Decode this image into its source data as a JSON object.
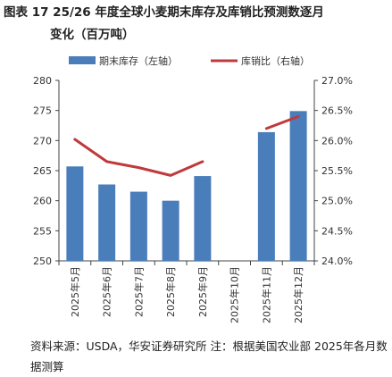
{
  "figure": {
    "title_line1": "图表 17 25/26 年度全球小麦期末库存及库销比预测数逐月",
    "title_line2": "变化（百万吨）",
    "source": "资料来源：USDA，华安证券研究所 注：根据美国农业部 2025年各月数据测算"
  },
  "chart_data": {
    "type": "bar+line",
    "categories": [
      "2025年5月",
      "2025年6月",
      "2025年7月",
      "2025年8月",
      "2025年9月",
      "2025年10月",
      "2025年11月",
      "2025年12月"
    ],
    "series": [
      {
        "name": "期末库存（左轴）",
        "type": "bar",
        "axis": "left",
        "color": "#4a7ebb",
        "values": [
          265.7,
          262.7,
          261.5,
          260.0,
          264.1,
          null,
          271.4,
          274.9
        ]
      },
      {
        "name": "库销比（右轴）",
        "type": "line",
        "axis": "right",
        "color": "#c0393b",
        "values": [
          26.02,
          25.65,
          25.55,
          25.42,
          25.65,
          null,
          26.2,
          26.4
        ]
      }
    ],
    "left_axis": {
      "ylim": [
        250,
        280
      ],
      "ticks": [
        "250",
        "255",
        "260",
        "265",
        "270",
        "275",
        "280"
      ]
    },
    "right_axis": {
      "ylim": [
        24.0,
        27.0
      ],
      "ticks": [
        "24.0%",
        "24.5%",
        "25.0%",
        "25.5%",
        "26.0%",
        "26.5%",
        "27.0%"
      ]
    },
    "legend_position": "top",
    "grid": false
  }
}
